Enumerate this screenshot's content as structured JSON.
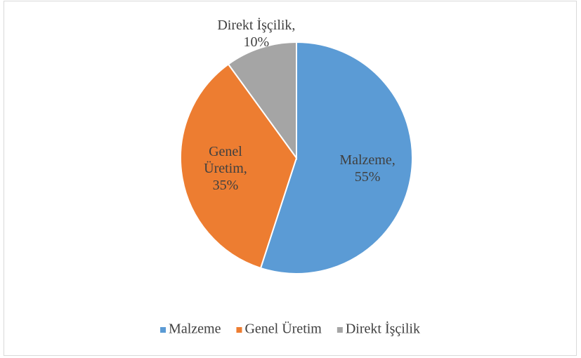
{
  "chart_data": {
    "type": "pie",
    "categories": [
      "Malzeme",
      "Genel Üretim",
      "Direkt İşçilik"
    ],
    "values": [
      55,
      35,
      10
    ],
    "value_labels": [
      "Malzeme, 55%",
      "Genel Üretim, 35%",
      "Direkt İşçilik, 10%"
    ],
    "colors": [
      "#5b9bd5",
      "#ed7d31",
      "#a5a5a5"
    ],
    "legend": "bottom"
  }
}
